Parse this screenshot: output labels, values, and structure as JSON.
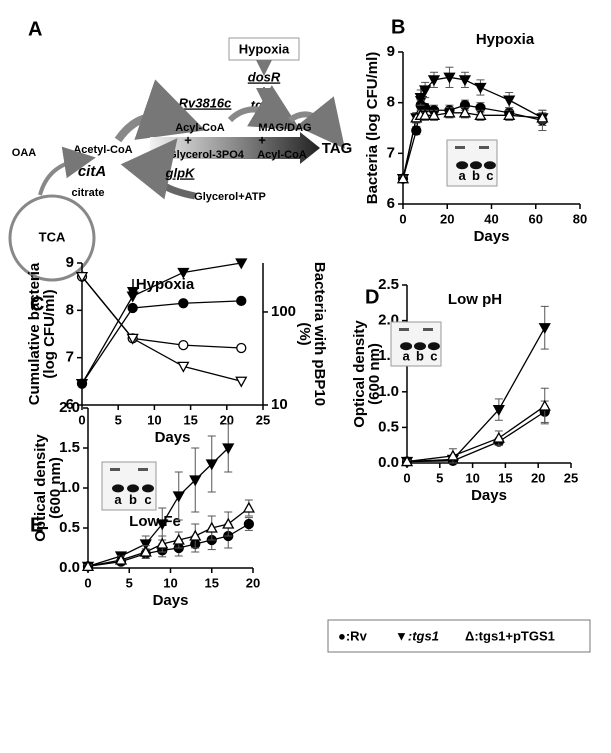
{
  "diagram": {
    "label": "A",
    "texts": [
      "Hypoxia",
      "dosR",
      "Rv3816c",
      "tgs1",
      "OAA",
      "Acetyl-CoA",
      "citA",
      "citrate",
      "TCA",
      "Acyl-CoA",
      "MAG/DAG",
      "+",
      "+",
      "TAG",
      "Glycerol-3PO4",
      "Acyl-CoA",
      "glpK",
      "Glycerol+ATP"
    ]
  },
  "legend": [
    "●:Rv",
    "▼:tgs1",
    "Δ:tgs1+pTGS1"
  ],
  "chart_data": [
    {
      "type": "line",
      "panel_label": "B",
      "title": "Hypoxia",
      "xlabel": "Days",
      "ylabel": [
        "Bacteria (log CFU/ml)"
      ],
      "xlim": [
        0,
        80
      ],
      "xticks": [
        0,
        20,
        40,
        60,
        80
      ],
      "ylim": [
        6,
        9
      ],
      "yticks": [
        6,
        7,
        8,
        9
      ],
      "inset_labels": [
        "a",
        "b",
        "c"
      ],
      "series": [
        {
          "marker": "circle",
          "color": "#000000",
          "x": [
            0,
            6,
            8,
            10,
            14,
            21,
            28,
            35,
            48,
            63
          ],
          "values": [
            6.5,
            7.45,
            7.95,
            7.9,
            7.85,
            7.85,
            7.95,
            7.9,
            7.8,
            7.65
          ],
          "errors": [
            0.05,
            0.08,
            0.1,
            0.08,
            0.1,
            0.1,
            0.1,
            0.1,
            0.1,
            0.2
          ]
        },
        {
          "marker": "triangle-down",
          "color": "#000000",
          "x": [
            0,
            6,
            8,
            10,
            14,
            21,
            28,
            35,
            48,
            63
          ],
          "values": [
            6.5,
            7.7,
            8.1,
            8.25,
            8.45,
            8.5,
            8.45,
            8.3,
            8.05,
            7.7
          ],
          "errors": [
            0.05,
            0.1,
            0.15,
            0.15,
            0.15,
            0.2,
            0.15,
            0.15,
            0.15,
            0.15
          ]
        },
        {
          "marker": "triangle-up-open",
          "color": "#000000",
          "x": [
            0,
            6,
            8,
            10,
            14,
            21,
            28,
            35,
            48,
            63
          ],
          "values": [
            6.5,
            7.7,
            7.75,
            7.75,
            7.75,
            7.8,
            7.8,
            7.75,
            7.75,
            7.7
          ],
          "errors": [
            0.05,
            0.1,
            0.1,
            0.1,
            0.1,
            0.1,
            0.1,
            0.1,
            0.1,
            0.1
          ]
        }
      ]
    },
    {
      "type": "line",
      "panel_label": "C",
      "title": "Hypoxia",
      "xlabel": "Days",
      "ylabel": [
        "Cumulative bacteria",
        "(log CFU/ml)"
      ],
      "y2label": [
        "Bacteria with pBP10",
        "(%)"
      ],
      "xlim": [
        0,
        25
      ],
      "xticks": [
        0,
        5,
        10,
        15,
        20,
        25
      ],
      "ylim": [
        6,
        9
      ],
      "yticks": [
        6,
        7,
        8,
        9
      ],
      "y2lim": [
        10,
        336
      ],
      "y2ticks": [
        10,
        100
      ],
      "y2scale": "log",
      "series": [
        {
          "marker": "circle",
          "color": "#000000",
          "x": [
            0,
            7,
            14,
            22
          ],
          "values": [
            6.45,
            8.05,
            8.15,
            8.2
          ]
        },
        {
          "marker": "triangle-down",
          "color": "#000000",
          "x": [
            0,
            7,
            14,
            22
          ],
          "values": [
            6.45,
            8.3,
            8.8,
            9.0
          ]
        },
        {
          "marker": "circle-open",
          "color": "#000000",
          "axis": "y2",
          "x": [
            0,
            7,
            14,
            22
          ],
          "values": [
            240,
            52,
            44,
            41
          ]
        },
        {
          "marker": "triangle-down-open",
          "color": "#000000",
          "axis": "y2",
          "x": [
            0,
            7,
            14,
            22
          ],
          "values": [
            240,
            52,
            26,
            18
          ]
        }
      ]
    },
    {
      "type": "line",
      "panel_label": "D",
      "title": "Low pH",
      "xlabel": "Days",
      "ylabel": [
        "Optical density",
        "(600 nm)"
      ],
      "xlim": [
        0,
        25
      ],
      "xticks": [
        0,
        5,
        10,
        15,
        20,
        25
      ],
      "ylim": [
        0,
        2.5
      ],
      "yticks": [
        {
          "value": 0,
          "label": "0.0"
        },
        {
          "value": 0.5,
          "label": "0.5"
        },
        {
          "value": 1,
          "label": "1.0"
        },
        {
          "value": 1.5,
          "label": "1.5"
        },
        {
          "value": 2,
          "label": "2.0"
        },
        {
          "value": 2.5,
          "label": "2.5"
        }
      ],
      "inset_labels": [
        "a",
        "b",
        "c"
      ],
      "series": [
        {
          "marker": "circle",
          "color": "#000000",
          "x": [
            0,
            7,
            14,
            21
          ],
          "values": [
            0.02,
            0.03,
            0.3,
            0.72
          ],
          "errors": [
            0.02,
            0.02,
            0.05,
            0.15
          ]
        },
        {
          "marker": "triangle-down",
          "color": "#000000",
          "x": [
            0,
            7,
            14,
            21
          ],
          "values": [
            0.02,
            0.05,
            0.75,
            1.9
          ],
          "errors": [
            0.02,
            0.05,
            0.15,
            0.3
          ]
        },
        {
          "marker": "triangle-up-open",
          "color": "#000000",
          "x": [
            0,
            7,
            14,
            21
          ],
          "values": [
            0.02,
            0.1,
            0.35,
            0.8
          ],
          "errors": [
            0.02,
            0.1,
            0.1,
            0.25
          ]
        }
      ]
    },
    {
      "type": "line",
      "panel_label": "E",
      "title": "Low Fe",
      "xlabel": "Days",
      "ylabel": [
        "Optical density",
        "(600 nm)"
      ],
      "xlim": [
        0,
        20
      ],
      "xticks": [
        0,
        5,
        10,
        15,
        20
      ],
      "ylim": [
        0,
        2
      ],
      "yticks": [
        {
          "value": 0,
          "label": "0.0"
        },
        {
          "value": 0.5,
          "label": "0.5"
        },
        {
          "value": 1,
          "label": "1.0"
        },
        {
          "value": 1.5,
          "label": "1.5"
        },
        {
          "value": 2,
          "label": "2.0"
        }
      ],
      "inset_labels": [
        "a",
        "b",
        "c"
      ],
      "series": [
        {
          "marker": "circle",
          "color": "#000000",
          "x": [
            0,
            4,
            7,
            9,
            11,
            13,
            15,
            17,
            19.5
          ],
          "values": [
            0.02,
            0.08,
            0.18,
            0.22,
            0.25,
            0.3,
            0.35,
            0.4,
            0.55
          ],
          "errors": [
            0.02,
            0.04,
            0.06,
            0.08,
            0.1,
            0.1,
            0.12,
            0.15,
            0.08
          ]
        },
        {
          "marker": "triangle-down",
          "color": "#000000",
          "x": [
            0,
            4,
            7,
            9,
            11,
            13,
            15,
            17
          ],
          "values": [
            0.02,
            0.15,
            0.3,
            0.55,
            0.9,
            1.1,
            1.3,
            1.5
          ],
          "errors": [
            0.02,
            0.05,
            0.1,
            0.2,
            0.3,
            0.4,
            0.35,
            0.3
          ]
        },
        {
          "marker": "triangle-up-open",
          "color": "#000000",
          "x": [
            0,
            4,
            7,
            9,
            11,
            13,
            15,
            17,
            19.5
          ],
          "values": [
            0.02,
            0.1,
            0.2,
            0.3,
            0.35,
            0.4,
            0.5,
            0.55,
            0.75
          ],
          "errors": [
            0.02,
            0.05,
            0.08,
            0.1,
            0.1,
            0.15,
            0.15,
            0.15,
            0.1
          ]
        }
      ]
    }
  ]
}
